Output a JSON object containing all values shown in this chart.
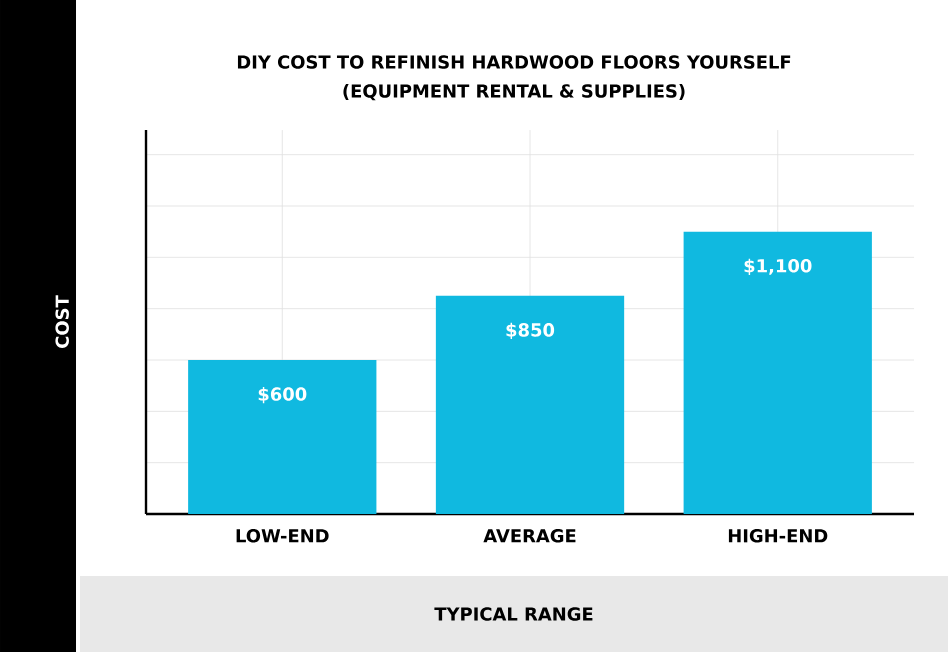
{
  "chart_data": {
    "type": "bar",
    "title": "DIY COST TO REFINISH HARDWOOD FLOORS YOURSELF",
    "subtitle": "(EQUIPMENT RENTAL & SUPPLIES)",
    "xlabel": "TYPICAL RANGE",
    "ylabel": "COST",
    "categories": [
      "LOW-END",
      "AVERAGE",
      "HIGH-END"
    ],
    "values": [
      600,
      850,
      1100
    ],
    "value_labels": [
      "$600",
      "$850",
      "$1,100"
    ],
    "color": "#10b9e0",
    "grid": true
  }
}
